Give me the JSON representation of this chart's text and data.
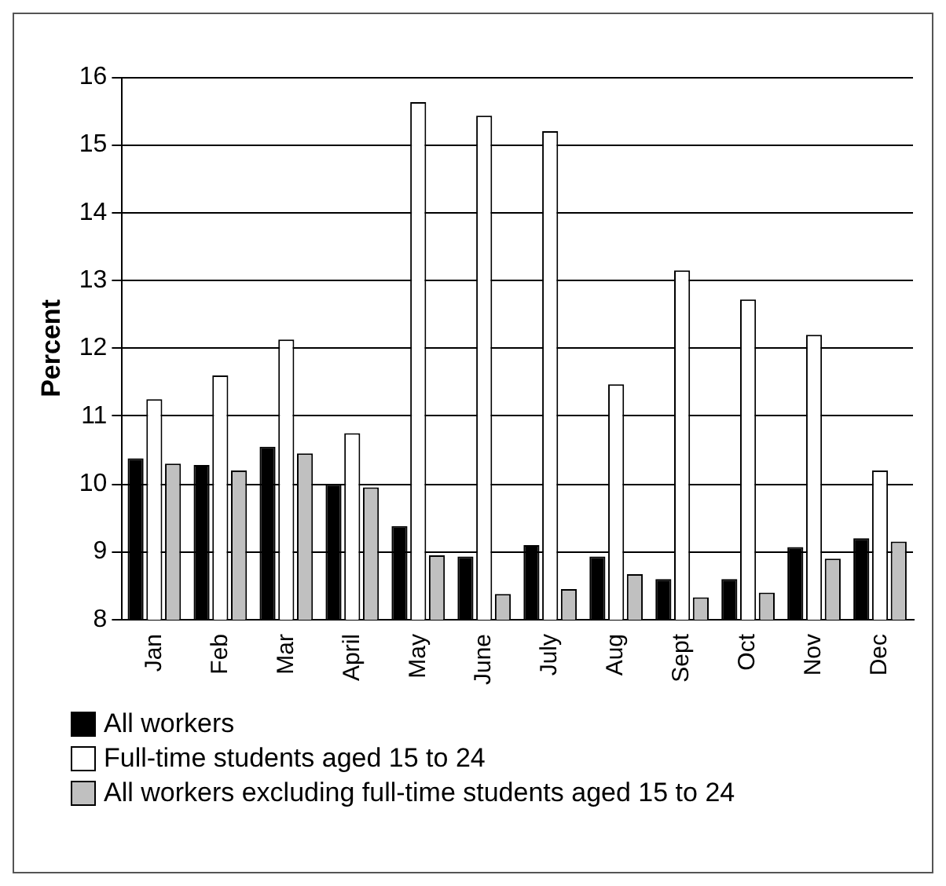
{
  "chart_data": {
    "type": "bar",
    "ylabel": "Percent",
    "categories": [
      "Jan",
      "Feb",
      "Mar",
      "April",
      "May",
      "June",
      "July",
      "Aug",
      "Sept",
      "Oct",
      "Nov",
      "Dec"
    ],
    "series": [
      {
        "name": "All workers",
        "color": "#000000",
        "values": [
          10.38,
          10.28,
          10.55,
          10.0,
          9.38,
          8.93,
          9.1,
          8.93,
          8.6,
          8.6,
          9.07,
          9.2
        ]
      },
      {
        "name": "Full-time students aged 15 to 24",
        "color": "#ffffff",
        "values": [
          11.25,
          11.6,
          12.13,
          10.75,
          15.63,
          15.43,
          15.2,
          11.47,
          13.15,
          12.72,
          12.2,
          10.2
        ]
      },
      {
        "name": "All workers excluding full-time students aged 15 to 24",
        "color": "#c0c0c0",
        "values": [
          10.3,
          10.2,
          10.45,
          9.95,
          8.95,
          8.38,
          8.45,
          8.67,
          8.33,
          8.4,
          8.9,
          9.15
        ]
      }
    ],
    "ylim": [
      8,
      16
    ],
    "yticks": [
      8,
      9,
      10,
      11,
      12,
      13,
      14,
      15,
      16
    ],
    "grid": "y",
    "legend": "bottom"
  }
}
